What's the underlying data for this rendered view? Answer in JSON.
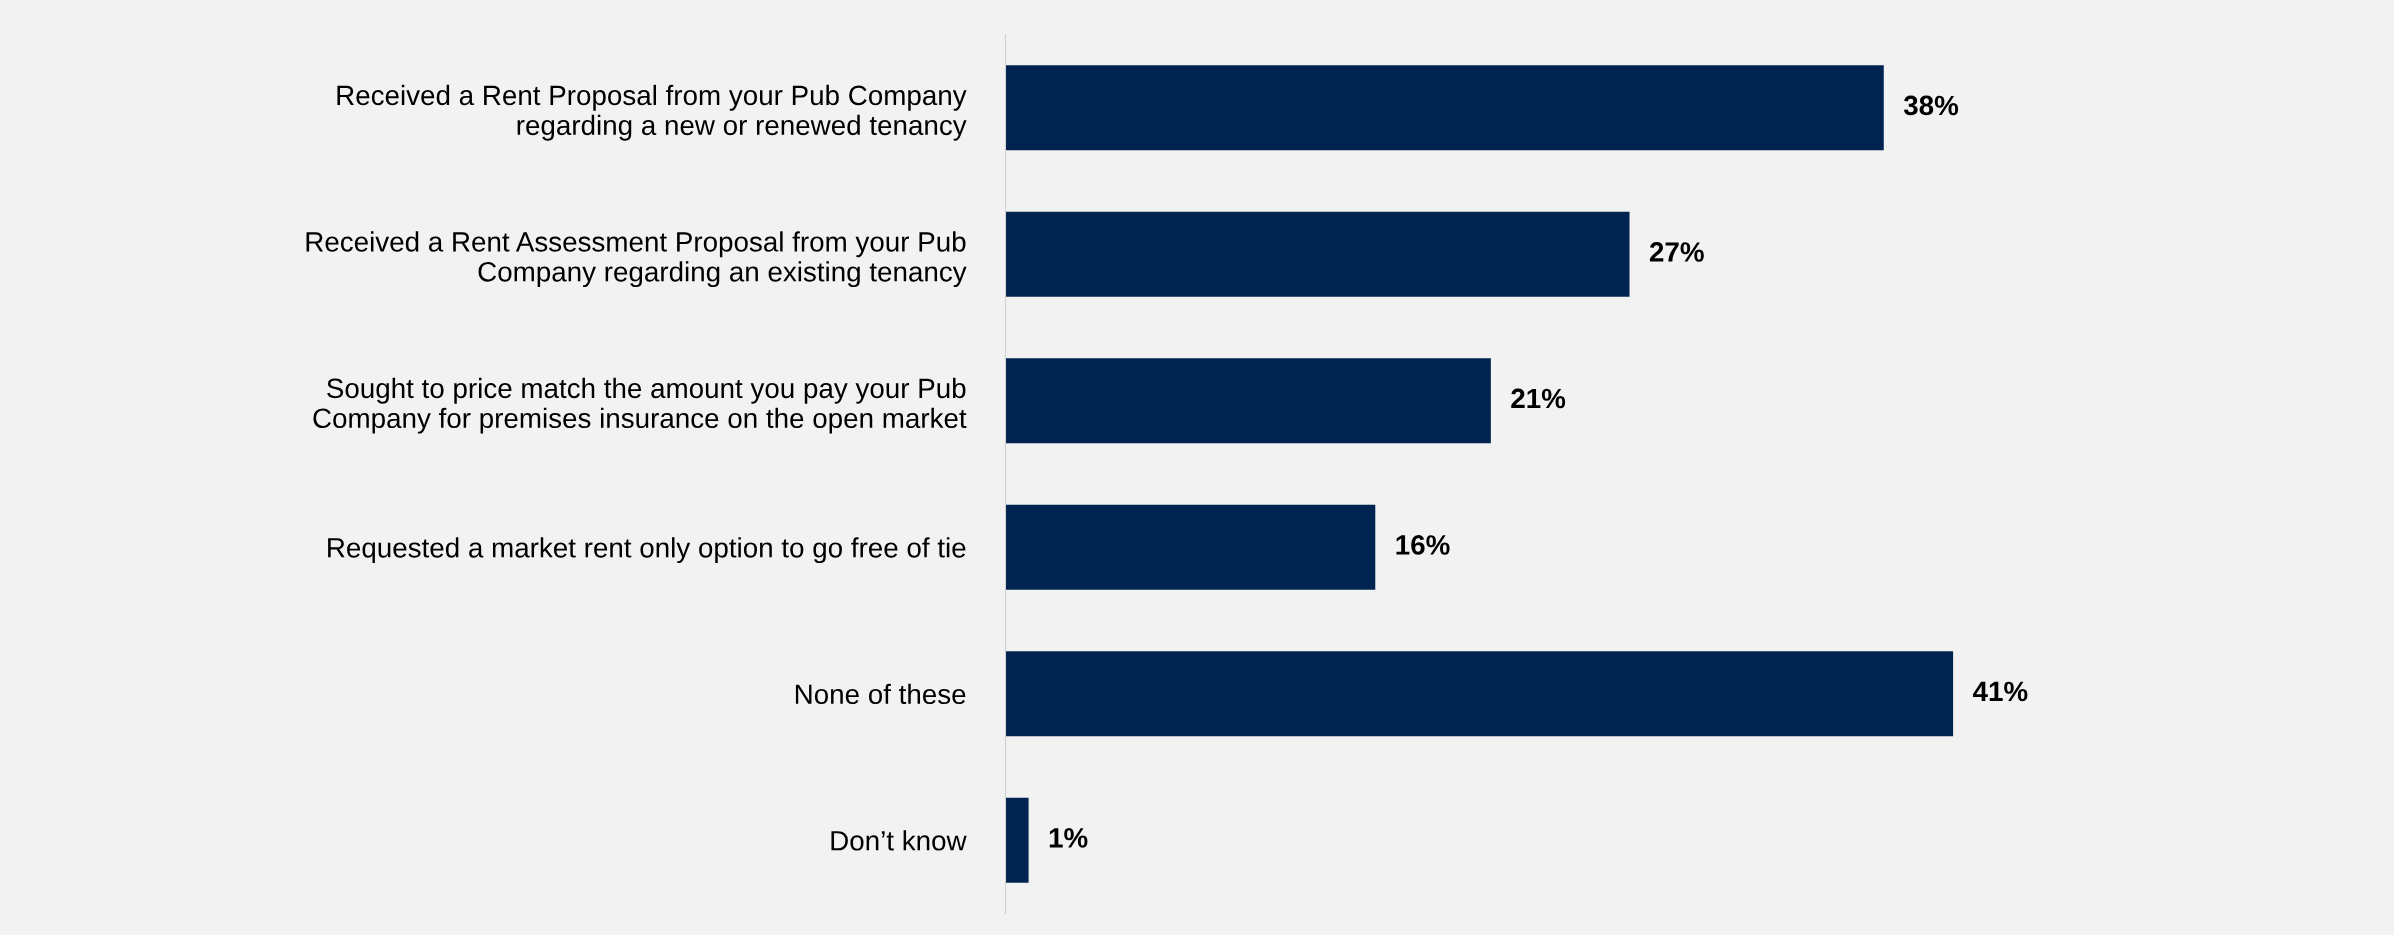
{
  "chart_data": {
    "type": "bar",
    "orientation": "horizontal",
    "categories": [
      "Received a Rent Proposal from your Pub Company\nregarding a new or renewed tenancy",
      "Received a Rent Assessment Proposal from your Pub\nCompany regarding an existing tenancy",
      "Sought to price match the amount you pay your Pub\nCompany for premises insurance on the open market",
      "Requested a market rent only option to go free of tie",
      "None of these",
      "Don’t know"
    ],
    "values": [
      38,
      27,
      21,
      16,
      41,
      1
    ],
    "value_labels": [
      "38%",
      "27%",
      "21%",
      "16%",
      "41%",
      "1%"
    ],
    "color": "#002350",
    "grid": false,
    "legend": false
  }
}
